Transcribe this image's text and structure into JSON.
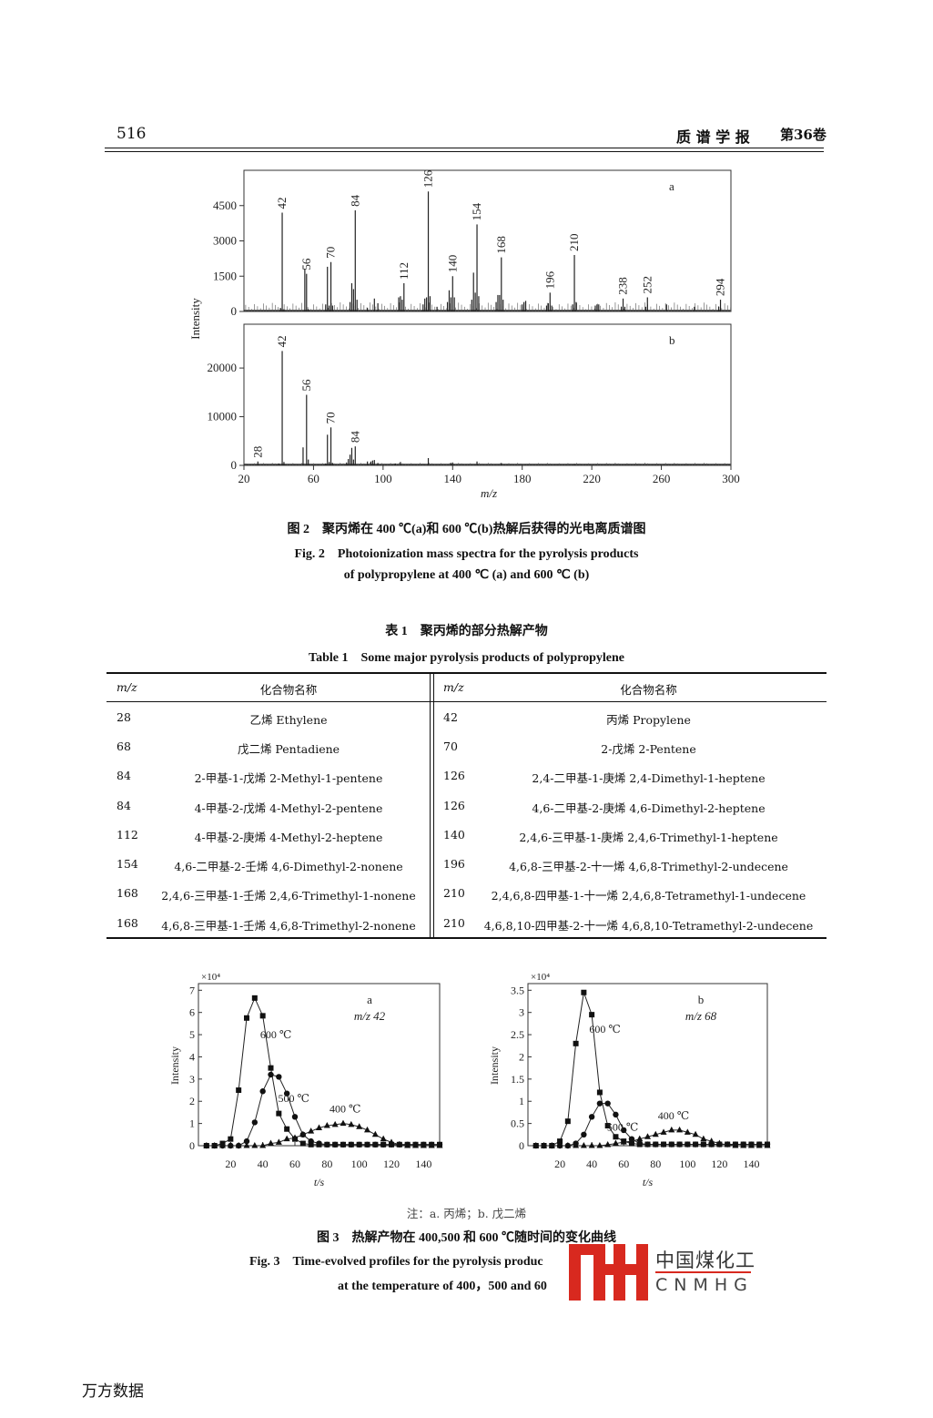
{
  "header": {
    "page_number": "516",
    "journal": "质 谱 学 报",
    "volume": "第36卷"
  },
  "figure2": {
    "caption_cn": "图 2　聚丙烯在 400 ℃(a)和 600 ℃(b)热解后获得的光电离质谱图",
    "caption_en_1": "Fig. 2　Photoionization mass spectra for the pyrolysis products",
    "caption_en_2": "of polypropylene at 400 ℃ (a) and 600 ℃ (b)"
  },
  "table1": {
    "title_cn": "表 1　聚丙烯的部分热解产物",
    "title_en": "Table 1　Some major pyrolysis products of polypropylene",
    "headers": [
      "m/z",
      "化合物名称",
      "m/z",
      "化合物名称"
    ],
    "rows": [
      [
        "28",
        "乙烯 Ethylene",
        "42",
        "丙烯 Propylene"
      ],
      [
        "68",
        "戊二烯 Pentadiene",
        "70",
        "2-戊烯 2-Pentene"
      ],
      [
        "84",
        "2-甲基-1-戊烯 2-Methyl-1-pentene",
        "126",
        "2,4-二甲基-1-庚烯 2,4-Dimethyl-1-heptene"
      ],
      [
        "84",
        "4-甲基-2-戊烯 4-Methyl-2-pentene",
        "126",
        "4,6-二甲基-2-庚烯 4,6-Dimethyl-2-heptene"
      ],
      [
        "112",
        "4-甲基-2-庚烯 4-Methyl-2-heptene",
        "140",
        "2,4,6-三甲基-1-庚烯 2,4,6-Trimethyl-1-heptene"
      ],
      [
        "154",
        "4,6-二甲基-2-壬烯 4,6-Dimethyl-2-nonene",
        "196",
        "4,6,8-三甲基-2-十一烯 4,6,8-Trimethyl-2-undecene"
      ],
      [
        "168",
        "2,4,6-三甲基-1-壬烯 2,4,6-Trimethyl-1-nonene",
        "210",
        "2,4,6,8-四甲基-1-十一烯 2,4,6,8-Tetramethyl-1-undecene"
      ],
      [
        "168",
        "4,6,8-三甲基-1-壬烯 4,6,8-Trimethyl-2-nonene",
        "210",
        "4,6,8,10-四甲基-2-十一烯 4,6,8,10-Tetramethyl-2-undecene"
      ]
    ]
  },
  "figure3": {
    "note": "注：a. 丙烯；b. 戊二烯",
    "caption_cn": "图 3　热解产物在 400,500 和 600 ℃随时间的变化曲线",
    "caption_en_1": "Fig. 3　Time-evolved profiles for the pyrolysis produc",
    "caption_en_2": "at the temperature of 400，500 and 60"
  },
  "watermark": {
    "logo_cn": "中国煤化工",
    "logo_en": "CNMHG",
    "color": "#d8291f"
  },
  "footer": {
    "source": "万方数据"
  },
  "chart_data": [
    {
      "type": "bar",
      "panel": "a",
      "xlabel": "m/z",
      "ylabel": "Intensity",
      "xlim": [
        20,
        300
      ],
      "xticks": [
        20,
        60,
        100,
        140,
        180,
        220,
        260,
        300
      ],
      "ylim": [
        0,
        6000
      ],
      "yticks": [
        0,
        1500,
        3000,
        4500
      ],
      "labeled_peaks": [
        "42",
        "56",
        "70",
        "84",
        "112",
        "126",
        "140",
        "154",
        "168",
        "196",
        "210",
        "238",
        "252",
        "294"
      ],
      "x": [
        41,
        42,
        43,
        55,
        56,
        57,
        67,
        68,
        69,
        70,
        71,
        81,
        82,
        83,
        84,
        85,
        91,
        95,
        97,
        109,
        110,
        111,
        112,
        123,
        124,
        125,
        126,
        127,
        131,
        137,
        138,
        139,
        140,
        141,
        151,
        152,
        153,
        154,
        155,
        165,
        166,
        167,
        168,
        169,
        180,
        181,
        182,
        194,
        195,
        196,
        197,
        209,
        210,
        211,
        222,
        223,
        224,
        237,
        238,
        239,
        251,
        252,
        263,
        279,
        293,
        294
      ],
      "y": [
        150,
        4200,
        100,
        1800,
        1600,
        100,
        300,
        1900,
        250,
        2100,
        250,
        400,
        1200,
        950,
        4300,
        500,
        150,
        550,
        350,
        600,
        650,
        500,
        1200,
        300,
        550,
        600,
        5100,
        650,
        200,
        400,
        900,
        600,
        1500,
        600,
        500,
        1650,
        800,
        3700,
        650,
        400,
        700,
        700,
        2300,
        500,
        300,
        400,
        450,
        250,
        350,
        800,
        250,
        300,
        2400,
        400,
        250,
        300,
        300,
        200,
        550,
        200,
        200,
        600,
        300,
        200,
        200,
        500
      ]
    },
    {
      "type": "bar",
      "panel": "b",
      "xlabel": "m/z",
      "ylabel": "Intensity",
      "xlim": [
        20,
        300
      ],
      "xticks": [
        20,
        60,
        100,
        140,
        180,
        220,
        260,
        300
      ],
      "ylim": [
        0,
        29000
      ],
      "yticks": [
        0,
        10000,
        20000
      ],
      "labeled_peaks": [
        "28",
        "42",
        "56",
        "70",
        "84"
      ],
      "x": [
        28,
        40,
        42,
        43,
        54,
        56,
        57,
        67,
        68,
        69,
        70,
        71,
        79,
        80,
        81,
        82,
        83,
        84,
        91,
        93,
        94,
        95,
        97,
        107,
        110,
        126,
        139,
        140,
        154,
        168,
        210
      ],
      "y": [
        800,
        400,
        23500,
        700,
        3700,
        14500,
        1200,
        400,
        6300,
        700,
        7800,
        500,
        600,
        1300,
        2200,
        3600,
        1200,
        3900,
        800,
        800,
        1000,
        1100,
        500,
        400,
        700,
        1500,
        500,
        600,
        800,
        500,
        300
      ]
    },
    {
      "type": "line",
      "panel": "a",
      "annotation": "m/z 42",
      "xlabel": "t/s",
      "ylabel": "Intensity",
      "y_multiplier": "×10⁴",
      "xlim": [
        0,
        150
      ],
      "xticks": [
        20,
        40,
        60,
        80,
        100,
        120,
        140
      ],
      "ylim": [
        0,
        7.3
      ],
      "yticks": [
        0,
        1,
        2,
        3,
        4,
        5,
        6,
        7
      ],
      "x": [
        5,
        10,
        15,
        20,
        25,
        30,
        35,
        40,
        45,
        50,
        55,
        60,
        65,
        70,
        75,
        80,
        85,
        90,
        95,
        100,
        105,
        110,
        115,
        120,
        125,
        130,
        135,
        140,
        145,
        150
      ],
      "series": [
        {
          "name": "600 ℃",
          "marker": "square",
          "values": [
            0,
            0,
            0.1,
            0.3,
            2.5,
            5.75,
            6.65,
            5.85,
            3.5,
            1.45,
            0.75,
            0.3,
            0.1,
            0.05,
            0.05,
            0.05,
            0.05,
            0.05,
            0.05,
            0.05,
            0.05,
            0.05,
            0.05,
            0.05,
            0.05,
            0.05,
            0.05,
            0.05,
            0.05,
            0.05
          ]
        },
        {
          "name": "500 ℃",
          "marker": "circle",
          "values": [
            0,
            0,
            0,
            0,
            0,
            0.2,
            1.05,
            2.45,
            3.2,
            3.1,
            2.35,
            1.3,
            0.5,
            0.2,
            0.1,
            0.05,
            0.05,
            0.05,
            0.05,
            0.05,
            0.05,
            0.05,
            0.05,
            0.05,
            0.05,
            0.05,
            0.05,
            0.05,
            0.05,
            0.05
          ]
        },
        {
          "name": "400 ℃",
          "marker": "triangle",
          "values": [
            0,
            0,
            0,
            0,
            0,
            0,
            0,
            0,
            0.1,
            0.15,
            0.3,
            0.35,
            0.5,
            0.65,
            0.8,
            0.9,
            0.95,
            1.0,
            0.95,
            0.85,
            0.7,
            0.5,
            0.3,
            0.15,
            0.05,
            0,
            0,
            0,
            0,
            0
          ]
        }
      ]
    },
    {
      "type": "line",
      "panel": "b",
      "annotation": "m/z 68",
      "xlabel": "t/s",
      "ylabel": "Intensity",
      "y_multiplier": "×10⁴",
      "xlim": [
        0,
        150
      ],
      "xticks": [
        20,
        40,
        60,
        80,
        100,
        120,
        140
      ],
      "ylim": [
        0,
        3.65
      ],
      "yticks": [
        0,
        0.5,
        1,
        1.5,
        2,
        2.5,
        3,
        3.5
      ],
      "x": [
        5,
        10,
        15,
        20,
        25,
        30,
        35,
        40,
        45,
        50,
        55,
        60,
        65,
        70,
        75,
        80,
        85,
        90,
        95,
        100,
        105,
        110,
        115,
        120,
        125,
        130,
        135,
        140,
        145,
        150
      ],
      "series": [
        {
          "name": "600 ℃",
          "marker": "square",
          "values": [
            0,
            0,
            0,
            0.1,
            0.55,
            2.3,
            3.45,
            2.95,
            1.2,
            0.45,
            0.2,
            0.1,
            0.05,
            0.03,
            0.03,
            0.03,
            0.03,
            0.03,
            0.03,
            0.03,
            0.03,
            0.03,
            0.03,
            0.03,
            0.03,
            0.03,
            0.03,
            0.03,
            0.03,
            0.03
          ]
        },
        {
          "name": "500 ℃",
          "marker": "circle",
          "values": [
            0,
            0,
            0,
            0,
            0,
            0.05,
            0.25,
            0.65,
            0.95,
            0.95,
            0.7,
            0.35,
            0.15,
            0.05,
            0.03,
            0.03,
            0.03,
            0.03,
            0.03,
            0.03,
            0.03,
            0.03,
            0.03,
            0.03,
            0.03,
            0.03,
            0.03,
            0.03,
            0.03,
            0.03
          ]
        },
        {
          "name": "400 ℃",
          "marker": "triangle",
          "values": [
            0,
            0,
            0,
            0,
            0,
            0,
            0,
            0,
            0,
            0.02,
            0.05,
            0.08,
            0.1,
            0.15,
            0.2,
            0.25,
            0.3,
            0.35,
            0.35,
            0.3,
            0.25,
            0.15,
            0.1,
            0.05,
            0.02,
            0,
            0,
            0,
            0,
            0
          ]
        }
      ]
    }
  ]
}
